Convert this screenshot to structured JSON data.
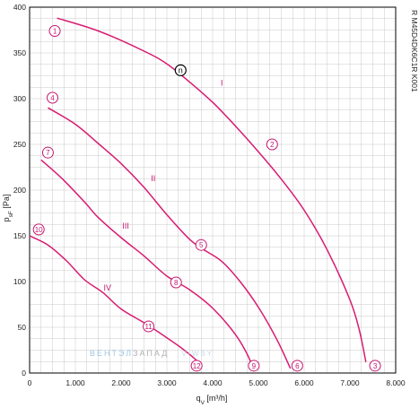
{
  "chart_data": {
    "type": "line",
    "x_axis": {
      "label_main": "q",
      "label_sub": "V",
      "label_unit": " [m³/h]",
      "range": [
        0,
        8000
      ],
      "ticks": [
        0,
        1000,
        2000,
        3000,
        4000,
        5000,
        6000,
        7000,
        8000
      ],
      "tick_labels": [
        "0",
        "1.000",
        "2.000",
        "3.000",
        "4.000",
        "5.000",
        "6.000",
        "7.000",
        "8.000"
      ]
    },
    "y_axis": {
      "label_main": "p",
      "label_sub": "sF",
      "label_unit": " [Pa]",
      "range": [
        0,
        400
      ],
      "ticks": [
        0,
        50,
        100,
        150,
        200,
        250,
        300,
        350,
        400
      ],
      "tick_labels": [
        "0",
        "50",
        "100",
        "150",
        "200",
        "250",
        "300",
        "350",
        "400"
      ]
    },
    "grid": true,
    "model_code": "R M45D4DK6C1R K001",
    "series": [
      {
        "name": "I",
        "points": [
          [
            600,
            388
          ],
          [
            1500,
            374
          ],
          [
            2500,
            352
          ],
          [
            3000,
            338
          ],
          [
            3500,
            318
          ],
          [
            4000,
            296
          ],
          [
            4500,
            270
          ],
          [
            5000,
            242
          ],
          [
            5500,
            212
          ],
          [
            6000,
            178
          ],
          [
            6500,
            135
          ],
          [
            7000,
            80
          ],
          [
            7200,
            48
          ],
          [
            7350,
            12
          ]
        ]
      },
      {
        "name": "II",
        "points": [
          [
            400,
            290
          ],
          [
            1000,
            272
          ],
          [
            1500,
            251
          ],
          [
            2000,
            229
          ],
          [
            2500,
            203
          ],
          [
            3000,
            173
          ],
          [
            3500,
            146
          ],
          [
            3800,
            135
          ],
          [
            4200,
            122
          ],
          [
            4600,
            100
          ],
          [
            5000,
            72
          ],
          [
            5400,
            37
          ],
          [
            5700,
            5
          ]
        ]
      },
      {
        "name": "III",
        "points": [
          [
            250,
            233
          ],
          [
            700,
            213
          ],
          [
            1200,
            187
          ],
          [
            1500,
            170
          ],
          [
            2000,
            148
          ],
          [
            2500,
            128
          ],
          [
            3000,
            106
          ],
          [
            3500,
            91
          ],
          [
            4000,
            71
          ],
          [
            4500,
            42
          ],
          [
            4800,
            16
          ],
          [
            4850,
            5
          ]
        ]
      },
      {
        "name": "IV",
        "points": [
          [
            0,
            150
          ],
          [
            400,
            140
          ],
          [
            800,
            123
          ],
          [
            1200,
            102
          ],
          [
            1600,
            88
          ],
          [
            2000,
            70
          ],
          [
            2500,
            55
          ],
          [
            2900,
            42
          ],
          [
            3300,
            28
          ],
          [
            3600,
            16
          ],
          [
            3750,
            8
          ]
        ]
      }
    ],
    "series_labels": [
      {
        "text": "I",
        "x": 4200,
        "y": 314
      },
      {
        "text": "II",
        "x": 2700,
        "y": 210
      },
      {
        "text": "III",
        "x": 2100,
        "y": 158
      },
      {
        "text": "IV",
        "x": 1700,
        "y": 90
      }
    ],
    "markers": [
      {
        "text": "1",
        "x": 550,
        "y": 374
      },
      {
        "text": "2",
        "x": 5300,
        "y": 250
      },
      {
        "text": "3",
        "x": 7550,
        "y": 8
      },
      {
        "text": "4",
        "x": 500,
        "y": 301
      },
      {
        "text": "5",
        "x": 3750,
        "y": 140
      },
      {
        "text": "6",
        "x": 5850,
        "y": 8
      },
      {
        "text": "7",
        "x": 400,
        "y": 241
      },
      {
        "text": "8",
        "x": 3200,
        "y": 99
      },
      {
        "text": "9",
        "x": 4900,
        "y": 8
      },
      {
        "text": "10",
        "x": 200,
        "y": 157
      },
      {
        "text": "11",
        "x": 2600,
        "y": 51
      },
      {
        "text": "12",
        "x": 3650,
        "y": 8
      }
    ],
    "operating_point": {
      "text": "n",
      "x": 3300,
      "y": 331
    }
  },
  "watermark": {
    "part1": "ВЕНТЭЛ",
    "part2": "ЗАПАД",
    "part3": "V-WBY"
  },
  "colors": {
    "curve": "#d81b72",
    "marker": "#c4166f",
    "grid": "#c8c8c8",
    "axis": "#000000"
  }
}
